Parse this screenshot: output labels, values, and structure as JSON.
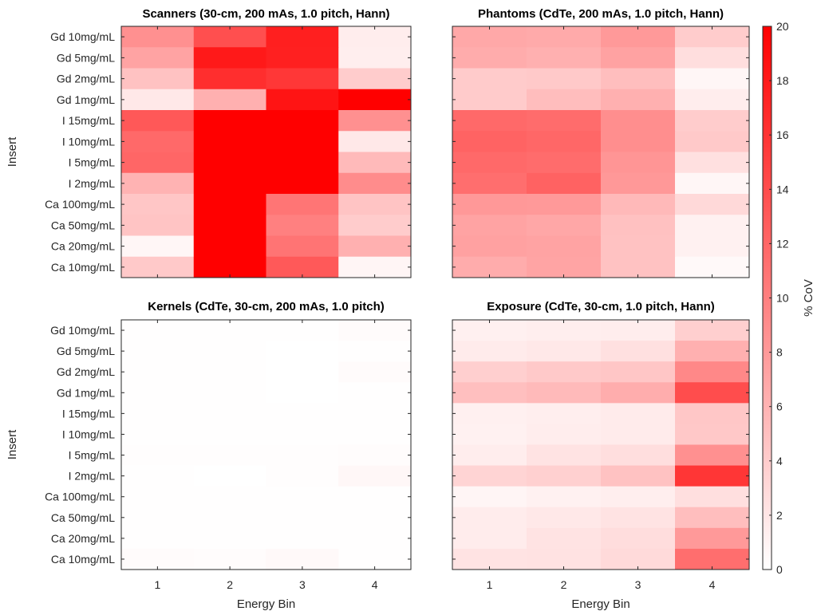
{
  "chart_data": {
    "type": "heatmap",
    "colormap": {
      "low": "#ffffff",
      "high": "#ff0000"
    },
    "clim": [
      0,
      20
    ],
    "colorbar": {
      "label": "% CoV",
      "ticks": [
        0,
        2,
        4,
        6,
        8,
        10,
        12,
        14,
        16,
        18,
        20
      ],
      "placement": "right"
    },
    "rows": [
      "Gd 10mg/mL",
      "Gd 5mg/mL",
      "Gd 2mg/mL",
      "Gd 1mg/mL",
      "I 15mg/mL",
      "I 10mg/mL",
      "I 5mg/mL",
      "I 2mg/mL",
      "Ca 100mg/mL",
      "Ca 50mg/mL",
      "Ca 20mg/mL",
      "Ca 10mg/mL"
    ],
    "columns": [
      "1",
      "2",
      "3",
      "4"
    ],
    "ylabel": "Insert",
    "xlabel": "Energy Bin",
    "panels": [
      {
        "id": "scanners",
        "title": "Scanners (30-cm, 200 mAs, 1.0 pitch, Hann)",
        "show_ylabels": true,
        "show_xlabels": false,
        "values": [
          [
            8.7,
            13.8,
            17.6,
            1.4
          ],
          [
            7.2,
            18.0,
            17.5,
            1.3
          ],
          [
            4.8,
            16.4,
            15.7,
            4.0
          ],
          [
            1.8,
            6.2,
            18.4,
            20.0
          ],
          [
            13.1,
            20.0,
            20.0,
            8.7
          ],
          [
            11.8,
            20.0,
            20.0,
            1.8
          ],
          [
            12.0,
            20.0,
            20.0,
            5.4
          ],
          [
            6.0,
            20.0,
            20.0,
            9.0
          ],
          [
            4.5,
            20.0,
            10.8,
            4.6
          ],
          [
            4.6,
            20.0,
            10.0,
            4.0
          ],
          [
            0.7,
            20.0,
            10.9,
            6.2
          ],
          [
            4.2,
            20.0,
            13.0,
            0.8
          ]
        ]
      },
      {
        "id": "phantoms",
        "title": "Phantoms (CdTe, 200 mAs, 1.0 pitch, Hann)",
        "show_ylabels": false,
        "show_xlabels": false,
        "values": [
          [
            6.8,
            6.7,
            8.0,
            4.0
          ],
          [
            6.5,
            6.2,
            7.3,
            2.6
          ],
          [
            4.1,
            4.2,
            5.1,
            0.7
          ],
          [
            4.1,
            5.2,
            6.2,
            1.4
          ],
          [
            11.8,
            11.5,
            8.9,
            4.0
          ],
          [
            12.2,
            11.9,
            8.9,
            4.2
          ],
          [
            11.8,
            11.5,
            8.3,
            2.4
          ],
          [
            11.4,
            12.3,
            8.1,
            0.7
          ],
          [
            8.1,
            8.0,
            5.5,
            3.0
          ],
          [
            7.2,
            6.9,
            4.9,
            1.1
          ],
          [
            7.4,
            7.2,
            4.8,
            1.1
          ],
          [
            6.5,
            7.1,
            4.8,
            0.5
          ]
        ]
      },
      {
        "id": "kernels",
        "title": "Kernels  (CdTe, 30-cm, 200 mAs, 1.0 pitch)",
        "show_ylabels": true,
        "show_xlabels": true,
        "values": [
          [
            0.1,
            0.1,
            0.1,
            0.3
          ],
          [
            0.1,
            0.1,
            0.0,
            0.1
          ],
          [
            0.1,
            0.1,
            0.0,
            0.35
          ],
          [
            0.1,
            0.1,
            0.0,
            0.1
          ],
          [
            0.1,
            0.1,
            0.1,
            0.1
          ],
          [
            0.1,
            0.1,
            0.1,
            0.1
          ],
          [
            0.15,
            0.15,
            0.15,
            0.25
          ],
          [
            0.1,
            0.0,
            0.15,
            0.6
          ],
          [
            0.1,
            0.1,
            0.1,
            0.1
          ],
          [
            0.1,
            0.1,
            0.1,
            0.05
          ],
          [
            0.1,
            0.05,
            0.05,
            0.1
          ],
          [
            0.3,
            0.2,
            0.5,
            0.1
          ]
        ]
      },
      {
        "id": "exposure",
        "title": "Exposure (CdTe, 30-cm, 1.0 pitch, Hann)",
        "show_ylabels": false,
        "show_xlabels": true,
        "values": [
          [
            1.2,
            1.3,
            1.4,
            3.8
          ],
          [
            1.6,
            1.8,
            2.4,
            6.2
          ],
          [
            3.8,
            4.2,
            4.5,
            9.3
          ],
          [
            5.0,
            5.4,
            6.4,
            14.0
          ],
          [
            1.2,
            1.3,
            1.6,
            4.4
          ],
          [
            1.1,
            1.4,
            1.6,
            4.3
          ],
          [
            1.4,
            2.2,
            2.6,
            8.7
          ],
          [
            3.4,
            3.7,
            4.8,
            15.8
          ],
          [
            0.8,
            1.1,
            1.3,
            2.5
          ],
          [
            1.5,
            1.8,
            2.2,
            5.1
          ],
          [
            1.5,
            2.2,
            2.7,
            8.0
          ],
          [
            2.2,
            2.3,
            2.9,
            11.4
          ]
        ]
      }
    ]
  }
}
